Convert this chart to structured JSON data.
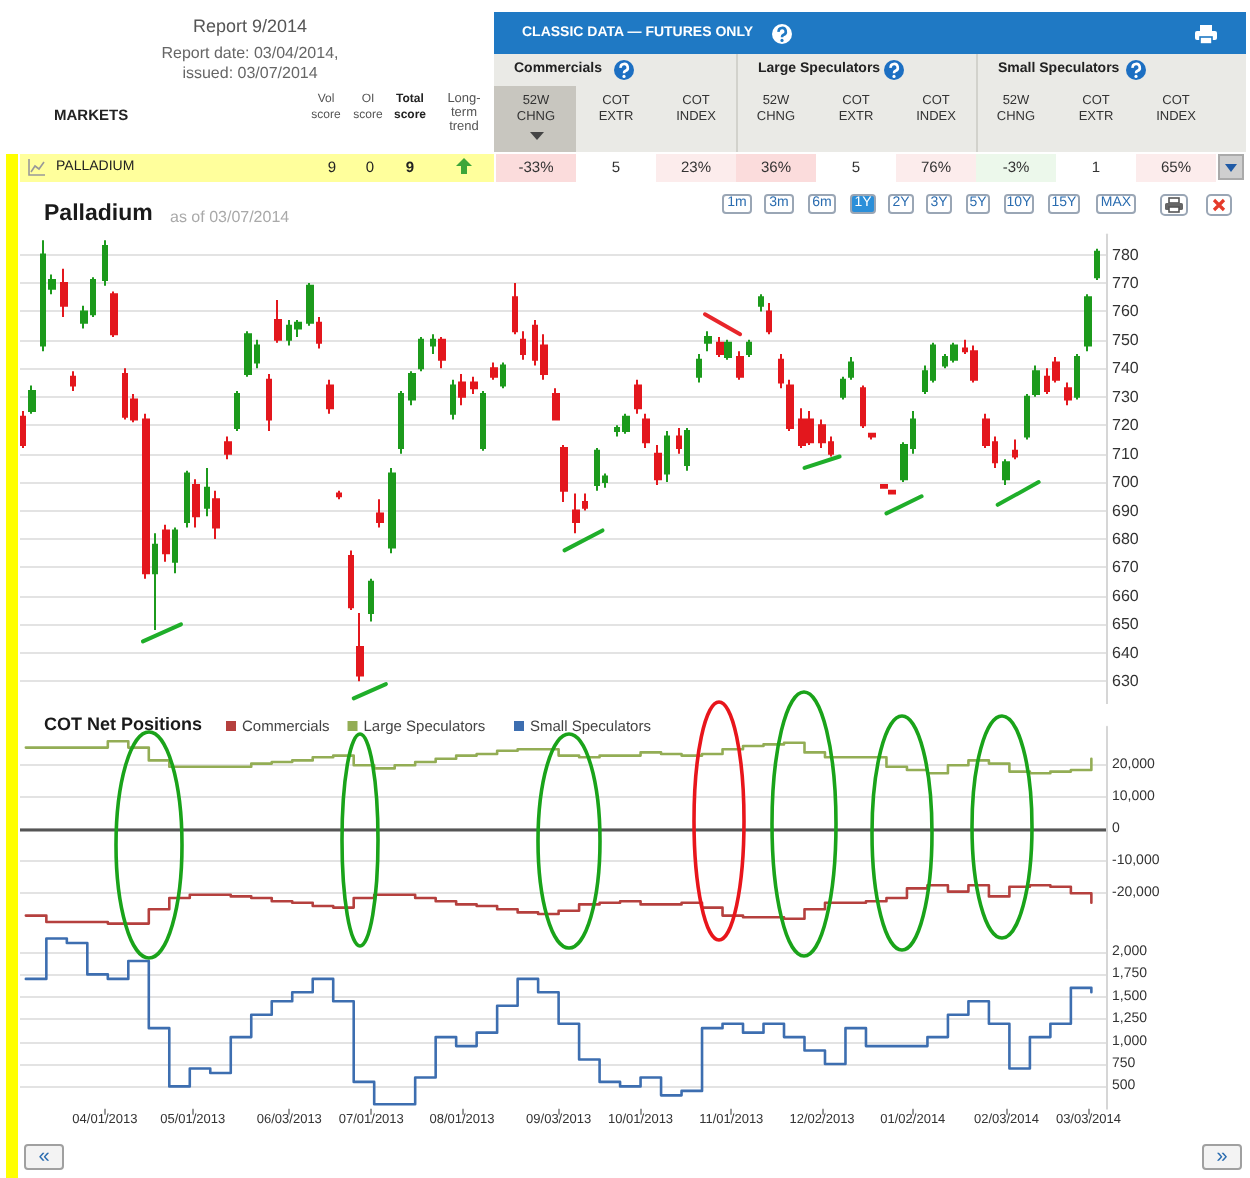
{
  "chart_data": [
    {
      "type": "other",
      "title": "Report 9/2014",
      "subtitle": "Report date: 03/04/2014, issued: 03/07/2014",
      "annotations": [
        "MARKETS",
        "Vol score",
        "OI score",
        "Total score",
        "Long-term trend",
        "CLASSIC DATA — FUTURES ONLY",
        "Commercials",
        "Large Speculators",
        "Small Speculators",
        "52W CHNG",
        "COT EXTR",
        "COT INDEX",
        "52W CHNG",
        "COT EXTR",
        "COT INDEX",
        "52W CHNG",
        "COT EXTR",
        "COT INDEX",
        "PALLADIUM",
        "9",
        "0",
        "9",
        "-33%",
        "5",
        "23%",
        "36%",
        "5",
        "76%",
        "-3%",
        "1",
        "65%"
      ]
    },
    {
      "type": "candlestick",
      "title": "Palladium",
      "subtitle": "as of 03/07/2014",
      "x": [
        "2013-03-04",
        "2013-03-07",
        "2013-03-11",
        "2013-03-14",
        "2013-03-18",
        "2013-03-21",
        "2013-03-25",
        "2013-03-28",
        "2013-04-01",
        "2013-04-04",
        "2013-04-08",
        "2013-04-11",
        "2013-04-15",
        "2013-04-18",
        "2013-04-22",
        "2013-04-25",
        "2013-04-29",
        "2013-05-02",
        "2013-05-06",
        "2013-05-09",
        "2013-05-13",
        "2013-05-16",
        "2013-05-20",
        "2013-05-23",
        "2013-05-27",
        "2013-05-30",
        "2013-06-03",
        "2013-06-06",
        "2013-06-10",
        "2013-06-13",
        "2013-06-17",
        "2013-06-20",
        "2013-06-24",
        "2013-06-27",
        "2013-07-01",
        "2013-07-04",
        "2013-07-08",
        "2013-07-11",
        "2013-07-15",
        "2013-07-18",
        "2013-07-22",
        "2013-07-25",
        "2013-07-29",
        "2013-08-01",
        "2013-08-05",
        "2013-08-08",
        "2013-08-12",
        "2013-08-15",
        "2013-08-19",
        "2013-08-22",
        "2013-08-26",
        "2013-08-29",
        "2013-09-02",
        "2013-09-05",
        "2013-09-09",
        "2013-09-12",
        "2013-09-16",
        "2013-09-19",
        "2013-09-23",
        "2013-09-26",
        "2013-09-30",
        "2013-10-03",
        "2013-10-07",
        "2013-10-10",
        "2013-10-14",
        "2013-10-17",
        "2013-10-21",
        "2013-10-24",
        "2013-10-28",
        "2013-10-31",
        "2013-11-04",
        "2013-11-07",
        "2013-11-11",
        "2013-11-14",
        "2013-11-18",
        "2013-11-21",
        "2013-11-25",
        "2013-11-28",
        "2013-12-02",
        "2013-12-05",
        "2013-12-09",
        "2013-12-12",
        "2013-12-16",
        "2013-12-19",
        "2013-12-23",
        "2013-12-26",
        "2013-12-30",
        "2014-01-02",
        "2014-01-06",
        "2014-01-09",
        "2014-01-13",
        "2014-01-16",
        "2014-01-20",
        "2014-01-23",
        "2014-01-27",
        "2014-01-30",
        "2014-02-03",
        "2014-02-06",
        "2014-02-10",
        "2014-02-13",
        "2014-02-17",
        "2014-02-20",
        "2014-02-24",
        "2014-02-27",
        "2014-03-03",
        "2014-03-06"
      ],
      "ohlc": [
        [
          723,
          725,
          712,
          713
        ],
        [
          725,
          734,
          724,
          732
        ],
        [
          748,
          785,
          746,
          780
        ],
        [
          768,
          773,
          766,
          771
        ],
        [
          770,
          775,
          758,
          762
        ],
        [
          737,
          739,
          732,
          734
        ],
        [
          756,
          762,
          754,
          760
        ],
        [
          759,
          772,
          758,
          771
        ],
        [
          771,
          785,
          769,
          783
        ],
        [
          766,
          767,
          751,
          752
        ],
        [
          738,
          740,
          722,
          723
        ],
        [
          729,
          731,
          721,
          722
        ],
        [
          722,
          724,
          666,
          668
        ],
        [
          668,
          682,
          648,
          678
        ],
        [
          683,
          685,
          672,
          675
        ],
        [
          672,
          684,
          668,
          683
        ],
        [
          686,
          704,
          684,
          703
        ],
        [
          699,
          701,
          684,
          688
        ],
        [
          691,
          705,
          688,
          698
        ],
        [
          694,
          697,
          680,
          684
        ],
        [
          714,
          716,
          708,
          710
        ],
        [
          719,
          732,
          718,
          731
        ],
        [
          738,
          753,
          737,
          752
        ],
        [
          742,
          750,
          740,
          748
        ],
        [
          736,
          738,
          718,
          722
        ],
        [
          757,
          764,
          749,
          750
        ],
        [
          750,
          757,
          748,
          755
        ],
        [
          754,
          757,
          751,
          756
        ],
        [
          756,
          770,
          755,
          769
        ],
        [
          756,
          758,
          747,
          749
        ],
        [
          734,
          736,
          724,
          726
        ],
        [
          696,
          697,
          694,
          695
        ],
        [
          674,
          676,
          655,
          656
        ],
        [
          642,
          654,
          630,
          632
        ],
        [
          654,
          666,
          651,
          665
        ],
        [
          689,
          694,
          684,
          686
        ],
        [
          677,
          705,
          675,
          703
        ],
        [
          712,
          732,
          710,
          731
        ],
        [
          729,
          739,
          727,
          738
        ],
        [
          740,
          751,
          739,
          750
        ],
        [
          748,
          752,
          745,
          750
        ],
        [
          750,
          751,
          740,
          743
        ],
        [
          724,
          736,
          722,
          734
        ],
        [
          735,
          738,
          727,
          730
        ],
        [
          735,
          737,
          731,
          733
        ],
        [
          712,
          732,
          711,
          731
        ],
        [
          740,
          742,
          736,
          737
        ],
        [
          734,
          742,
          733,
          741
        ],
        [
          765,
          770,
          752,
          753
        ],
        [
          750,
          753,
          743,
          745
        ],
        [
          755,
          757,
          741,
          743
        ],
        [
          748,
          752,
          736,
          738
        ],
        [
          731,
          733,
          722,
          722
        ],
        [
          712,
          713,
          693,
          697
        ],
        [
          690,
          696,
          682,
          686
        ],
        [
          693,
          696,
          690,
          691
        ],
        [
          699,
          712,
          697,
          711
        ],
        [
          700,
          703,
          698,
          702
        ],
        [
          718,
          720,
          716,
          719
        ],
        [
          718,
          724,
          717,
          723
        ],
        [
          734,
          736,
          724,
          726
        ],
        [
          722,
          724,
          712,
          714
        ],
        [
          710,
          713,
          699,
          701
        ],
        [
          703,
          718,
          700,
          716
        ],
        [
          716,
          719,
          710,
          712
        ],
        [
          706,
          719,
          704,
          718
        ],
        [
          737,
          745,
          735,
          743
        ],
        [
          749,
          753,
          746,
          751
        ],
        [
          749,
          751,
          744,
          745
        ],
        [
          744,
          750,
          743,
          749
        ],
        [
          744,
          746,
          736,
          737
        ],
        [
          745,
          750,
          744,
          749
        ],
        [
          762,
          766,
          760,
          765
        ],
        [
          760,
          763,
          752,
          753
        ],
        [
          743,
          745,
          733,
          735
        ],
        [
          734,
          736,
          718,
          719
        ],
        [
          722,
          726,
          712,
          713
        ],
        [
          722,
          725,
          713,
          714
        ],
        [
          720,
          722,
          712,
          714
        ],
        [
          714,
          716,
          709,
          710
        ],
        [
          730,
          737,
          729,
          736
        ],
        [
          737,
          744,
          736,
          742
        ],
        [
          733,
          734,
          719,
          720
        ],
        [
          717,
          717,
          715,
          716
        ],
        [
          699,
          699,
          698,
          698
        ],
        [
          697,
          697,
          696,
          696
        ],
        [
          701,
          714,
          700,
          713
        ],
        [
          712,
          725,
          710,
          722
        ],
        [
          732,
          741,
          731,
          739
        ],
        [
          736,
          749,
          735,
          748
        ],
        [
          741,
          745,
          740,
          744
        ],
        [
          743,
          749,
          742,
          748
        ],
        [
          747,
          750,
          745,
          746
        ],
        [
          746,
          748,
          735,
          736
        ],
        [
          722,
          724,
          712,
          713
        ],
        [
          714,
          716,
          705,
          707
        ],
        [
          701,
          708,
          699,
          707
        ],
        [
          711,
          715,
          708,
          709
        ],
        [
          716,
          731,
          715,
          730
        ],
        [
          731,
          741,
          730,
          739
        ],
        [
          737,
          740,
          731,
          732
        ],
        [
          742,
          744,
          735,
          736
        ],
        [
          733,
          735,
          727,
          729
        ],
        [
          730,
          745,
          729,
          744
        ],
        [
          748,
          766,
          746,
          765
        ],
        [
          772,
          782,
          771,
          781
        ]
      ],
      "series": [
        {
          "type": "line",
          "x": [
            "2013-04-14",
            "2013-04-27"
          ],
          "values": [
            644,
            650
          ],
          "color": "#1fae2a"
        },
        {
          "type": "line",
          "x": [
            "2013-06-25",
            "2013-07-06"
          ],
          "values": [
            624,
            629
          ],
          "color": "#1fae2a"
        },
        {
          "type": "line",
          "x": [
            "2013-09-05",
            "2013-09-18"
          ],
          "values": [
            676,
            683
          ],
          "color": "#1fae2a"
        },
        {
          "type": "line",
          "x": [
            "2013-10-23",
            "2013-11-04"
          ],
          "values": [
            759,
            752
          ],
          "color": "#e8262b"
        },
        {
          "type": "line",
          "x": [
            "2013-11-26",
            "2013-12-08"
          ],
          "values": [
            705,
            709
          ],
          "color": "#1fae2a"
        },
        {
          "type": "line",
          "x": [
            "2013-12-24",
            "2014-01-05"
          ],
          "values": [
            689,
            695
          ],
          "color": "#1fae2a"
        },
        {
          "type": "line",
          "x": [
            "2014-01-31",
            "2014-02-14"
          ],
          "values": [
            692,
            700
          ],
          "color": "#1fae2a"
        }
      ],
      "xlim": [
        "2013-03-03",
        "2014-03-09"
      ],
      "ylim": [
        622,
        787
      ],
      "yticks": [
        630,
        640,
        650,
        660,
        670,
        680,
        690,
        700,
        710,
        720,
        730,
        740,
        750,
        760,
        770,
        780
      ],
      "grid": "y",
      "tick_labels": "y",
      "annotations": [
        "1m",
        "3m",
        "6m",
        "1Y",
        "2Y",
        "3Y",
        "5Y",
        "10Y",
        "15Y",
        "MAX"
      ]
    },
    {
      "type": "step",
      "title": "COT Net Positions",
      "x": [
        "2013-03-05",
        "2013-03-12",
        "2013-03-19",
        "2013-03-26",
        "2013-04-02",
        "2013-04-09",
        "2013-04-16",
        "2013-04-23",
        "2013-04-30",
        "2013-05-07",
        "2013-05-14",
        "2013-05-21",
        "2013-05-28",
        "2013-06-04",
        "2013-06-11",
        "2013-06-18",
        "2013-06-25",
        "2013-07-02",
        "2013-07-09",
        "2013-07-16",
        "2013-07-23",
        "2013-07-30",
        "2013-08-06",
        "2013-08-13",
        "2013-08-20",
        "2013-08-27",
        "2013-09-03",
        "2013-09-10",
        "2013-09-17",
        "2013-09-24",
        "2013-10-01",
        "2013-10-08",
        "2013-10-15",
        "2013-10-22",
        "2013-10-29",
        "2013-11-05",
        "2013-11-12",
        "2013-11-19",
        "2013-11-26",
        "2013-12-03",
        "2013-12-10",
        "2013-12-17",
        "2013-12-24",
        "2013-12-31",
        "2014-01-07",
        "2014-01-14",
        "2014-01-21",
        "2014-01-28",
        "2014-02-04",
        "2014-02-11",
        "2014-02-18",
        "2014-02-25",
        "2014-03-04"
      ],
      "series": [
        {
          "name": "Commercials",
          "color": "#b5403e",
          "values": [
            -27000,
            -29000,
            -29000,
            -29000,
            -29500,
            -29500,
            -25000,
            -21500,
            -20500,
            -20500,
            -21000,
            -21500,
            -22500,
            -23000,
            -24000,
            -24500,
            -21500,
            -20500,
            -20500,
            -21500,
            -22500,
            -23500,
            -24000,
            -25000,
            -26000,
            -26500,
            -25500,
            -23500,
            -23000,
            -22500,
            -23500,
            -23500,
            -23000,
            -24500,
            -27000,
            -27500,
            -27500,
            -28000,
            -25000,
            -23000,
            -23000,
            -22500,
            -21500,
            -18500,
            -17500,
            -19500,
            -17500,
            -21000,
            -18000,
            -17500,
            -18000,
            -20000,
            -23000
          ]
        },
        {
          "name": "Large Speculators",
          "color": "#93ad55",
          "values": [
            25500,
            25500,
            25500,
            25500,
            27500,
            25500,
            21500,
            19500,
            19500,
            19500,
            19500,
            20500,
            21000,
            21500,
            22500,
            23000,
            20000,
            19000,
            20000,
            21000,
            22000,
            23000,
            23500,
            24500,
            25000,
            25000,
            23000,
            22500,
            23000,
            23000,
            24000,
            23500,
            23000,
            23500,
            25000,
            26000,
            26500,
            27000,
            24000,
            22500,
            22500,
            22500,
            19500,
            18500,
            17500,
            20000,
            21500,
            20500,
            18000,
            17500,
            18000,
            18500,
            22000
          ]
        }
      ],
      "xlim": [
        "2013-03-03",
        "2014-03-09"
      ],
      "ylim": [
        -31000,
        32000
      ],
      "yticks": [
        {
          "value": -20000,
          "label": "-20,000"
        },
        {
          "value": -10000,
          "label": "-10,000"
        },
        0,
        {
          "value": 10000,
          "label": "10,000"
        },
        {
          "value": 20000,
          "label": "20,000"
        }
      ],
      "grid": "y",
      "legend": "top left",
      "tick_labels": "y",
      "ref_lines": [
        {
          "axis": "y",
          "value": 0,
          "color": "#555555"
        }
      ]
    },
    {
      "type": "step",
      "x": [
        "2013-03-05",
        "2013-03-12",
        "2013-03-19",
        "2013-03-26",
        "2013-04-02",
        "2013-04-09",
        "2013-04-16",
        "2013-04-23",
        "2013-04-30",
        "2013-05-07",
        "2013-05-14",
        "2013-05-21",
        "2013-05-28",
        "2013-06-04",
        "2013-06-11",
        "2013-06-18",
        "2013-06-25",
        "2013-07-02",
        "2013-07-09",
        "2013-07-16",
        "2013-07-23",
        "2013-07-30",
        "2013-08-06",
        "2013-08-13",
        "2013-08-20",
        "2013-08-27",
        "2013-09-03",
        "2013-09-10",
        "2013-09-17",
        "2013-09-24",
        "2013-10-01",
        "2013-10-08",
        "2013-10-15",
        "2013-10-22",
        "2013-10-29",
        "2013-11-05",
        "2013-11-12",
        "2013-11-19",
        "2013-11-26",
        "2013-12-03",
        "2013-12-10",
        "2013-12-17",
        "2013-12-24",
        "2013-12-31",
        "2014-01-07",
        "2014-01-14",
        "2014-01-21",
        "2014-01-28",
        "2014-02-04",
        "2014-02-11",
        "2014-02-18",
        "2014-02-25",
        "2014-03-04"
      ],
      "series": [
        {
          "name": "Small Speculators",
          "color": "#3d6eb0",
          "values": [
            1700,
            2150,
            2100,
            1750,
            1700,
            1900,
            1150,
            500,
            700,
            650,
            1050,
            1300,
            1450,
            1550,
            1700,
            1450,
            550,
            300,
            300,
            600,
            1050,
            950,
            1100,
            1400,
            1700,
            1550,
            1200,
            800,
            550,
            500,
            600,
            400,
            450,
            1150,
            1200,
            1100,
            1200,
            1050,
            900,
            750,
            1150,
            950,
            950,
            950,
            1050,
            1300,
            1450,
            1200,
            700,
            1050,
            1200,
            1600,
            1550
          ]
        }
      ],
      "xlim": [
        "2013-03-03",
        "2014-03-09"
      ],
      "xticks": [
        {
          "value": "2013-04-01",
          "label": "04/01/2013"
        },
        {
          "value": "2013-05-01",
          "label": "05/01/2013"
        },
        {
          "value": "2013-06-03",
          "label": "06/03/2013"
        },
        {
          "value": "2013-07-01",
          "label": "07/01/2013"
        },
        {
          "value": "2013-08-01",
          "label": "08/01/2013"
        },
        {
          "value": "2013-09-03",
          "label": "09/03/2013"
        },
        {
          "value": "2013-10-01",
          "label": "10/01/2013"
        },
        {
          "value": "2013-11-01",
          "label": "11/01/2013"
        },
        {
          "value": "2013-12-02",
          "label": "12/02/2013"
        },
        {
          "value": "2014-01-02",
          "label": "01/02/2014"
        },
        {
          "value": "2014-02-03",
          "label": "02/03/2014"
        },
        {
          "value": "2014-03-03",
          "label": "03/03/2014"
        }
      ],
      "ylim": [
        250,
        2250
      ],
      "yticks": [
        500,
        750,
        {
          "value": 1000,
          "label": "1,000"
        },
        {
          "value": 1250,
          "label": "1,250"
        },
        {
          "value": 1500,
          "label": "1,500"
        },
        {
          "value": 1750,
          "label": "1,750"
        },
        {
          "value": 2000,
          "label": "2,000"
        }
      ],
      "grid": "y",
      "legend": "top left",
      "annotations": [
        "«",
        "»"
      ]
    }
  ]
}
